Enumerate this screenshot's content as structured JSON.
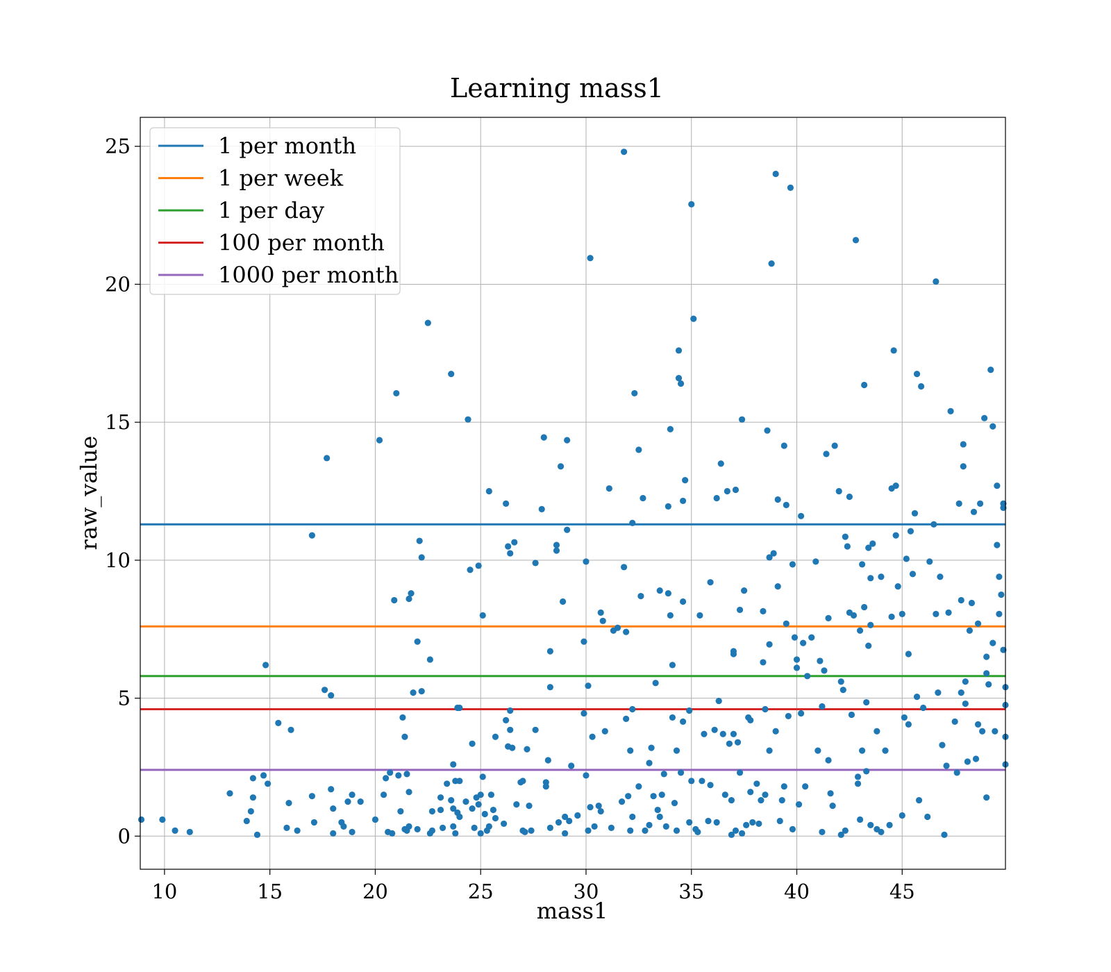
{
  "chart_data": {
    "type": "scatter",
    "title": "Learning mass1",
    "xlabel": "mass1",
    "ylabel": "raw_value",
    "xlim": [
      8.85,
      49.9
    ],
    "ylim": [
      -1.2,
      26.05
    ],
    "xticks": [
      10,
      15,
      20,
      25,
      30,
      35,
      40,
      45
    ],
    "yticks": [
      0,
      5,
      10,
      15,
      20,
      25
    ],
    "grid": true,
    "legend_position": "upper-left",
    "point_color": "#1f77b4",
    "hlines": [
      {
        "name": "1 per month",
        "value": 11.3,
        "color": "#1f77b4"
      },
      {
        "name": "1 per week",
        "value": 7.6,
        "color": "#ff7f0e"
      },
      {
        "name": "1 per day",
        "value": 5.8,
        "color": "#2ca02c"
      },
      {
        "name": "100 per month",
        "value": 4.6,
        "color": "#d62728"
      },
      {
        "name": "1000 per month",
        "value": 2.4,
        "color": "#9467bd"
      }
    ],
    "points": [
      [
        8.9,
        0.6
      ],
      [
        9.9,
        0.6
      ],
      [
        10.5,
        0.2
      ],
      [
        11.2,
        0.15
      ],
      [
        13.1,
        1.55
      ],
      [
        13.9,
        0.55
      ],
      [
        14.1,
        0.9
      ],
      [
        14.2,
        1.4
      ],
      [
        14.2,
        2.1
      ],
      [
        14.4,
        0.05
      ],
      [
        14.7,
        2.2
      ],
      [
        14.8,
        6.2
      ],
      [
        14.9,
        1.9
      ],
      [
        15.4,
        4.1
      ],
      [
        15.8,
        0.3
      ],
      [
        15.9,
        1.2
      ],
      [
        16.0,
        3.85
      ],
      [
        16.3,
        0.2
      ],
      [
        17.0,
        1.45
      ],
      [
        17.0,
        10.9
      ],
      [
        17.1,
        0.5
      ],
      [
        17.6,
        5.3
      ],
      [
        17.7,
        13.7
      ],
      [
        17.9,
        1.7
      ],
      [
        17.9,
        5.1
      ],
      [
        18.0,
        0.1
      ],
      [
        18.0,
        1.0
      ],
      [
        18.4,
        0.5
      ],
      [
        18.5,
        0.35
      ],
      [
        18.7,
        1.25
      ],
      [
        18.9,
        0.15
      ],
      [
        18.9,
        1.5
      ],
      [
        19.3,
        1.25
      ],
      [
        20.0,
        0.6
      ],
      [
        20.2,
        14.35
      ],
      [
        20.4,
        1.5
      ],
      [
        20.5,
        2.1
      ],
      [
        20.6,
        0.15
      ],
      [
        20.7,
        2.3
      ],
      [
        20.8,
        0.1
      ],
      [
        20.9,
        8.55
      ],
      [
        21.0,
        16.05
      ],
      [
        21.1,
        2.2
      ],
      [
        21.2,
        0.9
      ],
      [
        21.3,
        4.3
      ],
      [
        21.4,
        0.25
      ],
      [
        21.4,
        3.6
      ],
      [
        21.5,
        2.25
      ],
      [
        21.5,
        0.2
      ],
      [
        21.6,
        0.35
      ],
      [
        21.6,
        1.6
      ],
      [
        21.6,
        8.6
      ],
      [
        21.7,
        8.8
      ],
      [
        21.8,
        5.2
      ],
      [
        22.0,
        0.25
      ],
      [
        22.0,
        7.05
      ],
      [
        22.1,
        10.7
      ],
      [
        22.2,
        10.1
      ],
      [
        22.2,
        5.25
      ],
      [
        22.5,
        18.6
      ],
      [
        22.6,
        6.4
      ],
      [
        22.6,
        0.1
      ],
      [
        22.7,
        0.2
      ],
      [
        22.7,
        0.9
      ],
      [
        23.1,
        1.4
      ],
      [
        23.1,
        0.95
      ],
      [
        23.2,
        0.3
      ],
      [
        23.4,
        1.9
      ],
      [
        23.6,
        16.75
      ],
      [
        23.6,
        1.3
      ],
      [
        23.7,
        2.6
      ],
      [
        23.7,
        0.35
      ],
      [
        23.7,
        1.0
      ],
      [
        23.8,
        0.1
      ],
      [
        23.8,
        2.0
      ],
      [
        23.9,
        0.85
      ],
      [
        23.9,
        4.65
      ],
      [
        24.0,
        0.7
      ],
      [
        24.0,
        4.65
      ],
      [
        24.0,
        2.0
      ],
      [
        24.3,
        1.25
      ],
      [
        24.4,
        15.1
      ],
      [
        24.5,
        9.65
      ],
      [
        24.6,
        1.0
      ],
      [
        24.6,
        3.35
      ],
      [
        24.7,
        0.3
      ],
      [
        24.8,
        1.4
      ],
      [
        24.9,
        9.8
      ],
      [
        24.9,
        1.15
      ],
      [
        25.0,
        0.1
      ],
      [
        25.0,
        1.5
      ],
      [
        25.1,
        2.15
      ],
      [
        25.1,
        8.0
      ],
      [
        25.2,
        0.8
      ],
      [
        25.3,
        0.2
      ],
      [
        25.4,
        12.5
      ],
      [
        25.4,
        0.35
      ],
      [
        25.5,
        1.5
      ],
      [
        25.6,
        0.95
      ],
      [
        25.7,
        0.65
      ],
      [
        25.7,
        3.6
      ],
      [
        26.1,
        0.45
      ],
      [
        26.2,
        12.05
      ],
      [
        26.2,
        4.2
      ],
      [
        26.3,
        10.5
      ],
      [
        26.3,
        3.25
      ],
      [
        26.4,
        10.25
      ],
      [
        26.4,
        4.55
      ],
      [
        26.4,
        3.85
      ],
      [
        26.5,
        3.2
      ],
      [
        26.6,
        10.65
      ],
      [
        26.7,
        1.15
      ],
      [
        26.9,
        1.95
      ],
      [
        27.0,
        2.0
      ],
      [
        27.0,
        0.2
      ],
      [
        27.1,
        0.15
      ],
      [
        27.2,
        3.15
      ],
      [
        27.3,
        1.1
      ],
      [
        27.4,
        0.2
      ],
      [
        27.6,
        3.85
      ],
      [
        27.6,
        9.9
      ],
      [
        27.9,
        11.85
      ],
      [
        28.0,
        14.45
      ],
      [
        28.1,
        1.95
      ],
      [
        28.1,
        1.8
      ],
      [
        28.2,
        2.75
      ],
      [
        28.3,
        0.3
      ],
      [
        28.3,
        6.7
      ],
      [
        28.3,
        5.4
      ],
      [
        28.6,
        10.55
      ],
      [
        28.6,
        10.35
      ],
      [
        28.7,
        0.5
      ],
      [
        28.8,
        13.4
      ],
      [
        28.9,
        8.5
      ],
      [
        29.0,
        0.1
      ],
      [
        29.0,
        0.7
      ],
      [
        29.1,
        11.1
      ],
      [
        29.1,
        14.35
      ],
      [
        29.2,
        0.55
      ],
      [
        29.3,
        2.55
      ],
      [
        29.6,
        0.75
      ],
      [
        29.9,
        4.45
      ],
      [
        29.9,
        7.05
      ],
      [
        30.0,
        2.2
      ],
      [
        30.0,
        9.95
      ],
      [
        30.1,
        0.2
      ],
      [
        30.1,
        5.45
      ],
      [
        30.2,
        20.95
      ],
      [
        30.2,
        1.05
      ],
      [
        30.3,
        3.6
      ],
      [
        30.4,
        0.35
      ],
      [
        30.6,
        1.1
      ],
      [
        30.7,
        0.9
      ],
      [
        30.7,
        8.1
      ],
      [
        30.8,
        7.8
      ],
      [
        30.9,
        3.8
      ],
      [
        31.1,
        12.6
      ],
      [
        31.2,
        0.3
      ],
      [
        31.3,
        7.45
      ],
      [
        31.5,
        7.55
      ],
      [
        31.7,
        1.25
      ],
      [
        31.8,
        9.75
      ],
      [
        31.8,
        24.8
      ],
      [
        31.9,
        7.4
      ],
      [
        31.9,
        4.25
      ],
      [
        32.0,
        1.45
      ],
      [
        32.1,
        3.1
      ],
      [
        32.1,
        0.2
      ],
      [
        32.2,
        0.7
      ],
      [
        32.2,
        11.35
      ],
      [
        32.2,
        4.6
      ],
      [
        32.3,
        16.05
      ],
      [
        32.5,
        14.0
      ],
      [
        32.5,
        1.8
      ],
      [
        32.6,
        8.7
      ],
      [
        32.7,
        12.25
      ],
      [
        32.8,
        0.2
      ],
      [
        33.0,
        0.4
      ],
      [
        33.0,
        2.65
      ],
      [
        33.1,
        3.2
      ],
      [
        33.2,
        1.45
      ],
      [
        33.3,
        5.55
      ],
      [
        33.4,
        0.95
      ],
      [
        33.5,
        8.9
      ],
      [
        33.5,
        0.7
      ],
      [
        33.6,
        1.5
      ],
      [
        33.7,
        2.25
      ],
      [
        33.8,
        0.35
      ],
      [
        33.9,
        11.95
      ],
      [
        33.9,
        8.8
      ],
      [
        34.0,
        14.75
      ],
      [
        34.0,
        8.0
      ],
      [
        34.1,
        6.2
      ],
      [
        34.1,
        4.3
      ],
      [
        34.2,
        1.2
      ],
      [
        34.3,
        3.1
      ],
      [
        34.3,
        0.2
      ],
      [
        34.4,
        17.6
      ],
      [
        34.4,
        16.6
      ],
      [
        34.5,
        2.3
      ],
      [
        34.5,
        16.4
      ],
      [
        34.6,
        12.15
      ],
      [
        34.6,
        8.5
      ],
      [
        34.6,
        4.15
      ],
      [
        34.7,
        12.9
      ],
      [
        34.9,
        4.55
      ],
      [
        34.9,
        0.5
      ],
      [
        35.0,
        2.0
      ],
      [
        35.0,
        22.9
      ],
      [
        35.1,
        18.75
      ],
      [
        35.2,
        0.25
      ],
      [
        35.3,
        0.15
      ],
      [
        35.4,
        8.0
      ],
      [
        35.5,
        2.0
      ],
      [
        35.6,
        3.7
      ],
      [
        35.8,
        0.55
      ],
      [
        35.9,
        9.2
      ],
      [
        35.9,
        1.85
      ],
      [
        36.1,
        3.85
      ],
      [
        36.2,
        12.25
      ],
      [
        36.2,
        0.5
      ],
      [
        36.3,
        4.9
      ],
      [
        36.4,
        13.5
      ],
      [
        36.5,
        3.7
      ],
      [
        36.6,
        1.5
      ],
      [
        36.7,
        12.5
      ],
      [
        36.8,
        3.35
      ],
      [
        36.9,
        0.05
      ],
      [
        36.9,
        1.3
      ],
      [
        37.0,
        3.7
      ],
      [
        37.0,
        6.6
      ],
      [
        37.0,
        6.7
      ],
      [
        37.1,
        12.55
      ],
      [
        37.1,
        0.2
      ],
      [
        37.2,
        3.4
      ],
      [
        37.3,
        8.2
      ],
      [
        37.3,
        2.3
      ],
      [
        37.4,
        15.1
      ],
      [
        37.4,
        0.1
      ],
      [
        37.5,
        8.9
      ],
      [
        37.6,
        0.4
      ],
      [
        37.7,
        4.3
      ],
      [
        37.8,
        4.2
      ],
      [
        37.8,
        1.6
      ],
      [
        37.9,
        0.5
      ],
      [
        38.1,
        1.9
      ],
      [
        38.2,
        0.45
      ],
      [
        38.3,
        1.3
      ],
      [
        38.4,
        6.3
      ],
      [
        38.4,
        8.15
      ],
      [
        38.5,
        4.6
      ],
      [
        38.5,
        1.5
      ],
      [
        38.6,
        14.7
      ],
      [
        38.7,
        10.1
      ],
      [
        38.7,
        6.95
      ],
      [
        38.7,
        3.1
      ],
      [
        38.8,
        20.75
      ],
      [
        38.9,
        10.25
      ],
      [
        39.0,
        3.8
      ],
      [
        39.0,
        24.0
      ],
      [
        39.1,
        12.2
      ],
      [
        39.1,
        9.05
      ],
      [
        39.2,
        0.55
      ],
      [
        39.3,
        1.3
      ],
      [
        39.4,
        14.15
      ],
      [
        39.4,
        1.8
      ],
      [
        39.5,
        7.7
      ],
      [
        39.5,
        12.0
      ],
      [
        39.6,
        4.35
      ],
      [
        39.7,
        23.5
      ],
      [
        39.8,
        0.25
      ],
      [
        39.8,
        9.85
      ],
      [
        39.9,
        7.2
      ],
      [
        40.0,
        6.4
      ],
      [
        40.0,
        6.1
      ],
      [
        40.1,
        1.15
      ],
      [
        40.2,
        4.45
      ],
      [
        40.2,
        11.6
      ],
      [
        40.3,
        7.0
      ],
      [
        40.4,
        1.8
      ],
      [
        40.5,
        5.8
      ],
      [
        40.7,
        7.2
      ],
      [
        40.9,
        9.95
      ],
      [
        41.0,
        3.1
      ],
      [
        41.1,
        6.35
      ],
      [
        41.2,
        4.7
      ],
      [
        41.2,
        0.15
      ],
      [
        41.3,
        6.0
      ],
      [
        41.4,
        13.85
      ],
      [
        41.5,
        2.75
      ],
      [
        41.5,
        7.9
      ],
      [
        41.6,
        1.55
      ],
      [
        41.7,
        1.1
      ],
      [
        41.8,
        14.15
      ],
      [
        42.0,
        12.5
      ],
      [
        42.1,
        5.6
      ],
      [
        42.1,
        0.05
      ],
      [
        42.2,
        5.3
      ],
      [
        42.3,
        10.85
      ],
      [
        42.3,
        0.2
      ],
      [
        42.4,
        10.5
      ],
      [
        42.5,
        12.3
      ],
      [
        42.5,
        8.1
      ],
      [
        42.6,
        4.4
      ],
      [
        42.7,
        8.0
      ],
      [
        42.8,
        21.6
      ],
      [
        42.9,
        2.15
      ],
      [
        42.9,
        1.9
      ],
      [
        43.0,
        7.45
      ],
      [
        43.0,
        0.6
      ],
      [
        43.1,
        9.85
      ],
      [
        43.1,
        3.1
      ],
      [
        43.2,
        8.3
      ],
      [
        43.2,
        16.35
      ],
      [
        43.3,
        4.85
      ],
      [
        43.3,
        2.35
      ],
      [
        43.4,
        10.45
      ],
      [
        43.4,
        6.9
      ],
      [
        43.5,
        0.4
      ],
      [
        43.5,
        9.35
      ],
      [
        43.5,
        7.65
      ],
      [
        43.6,
        10.6
      ],
      [
        43.8,
        0.25
      ],
      [
        43.8,
        3.8
      ],
      [
        44.0,
        9.4
      ],
      [
        44.0,
        0.15
      ],
      [
        44.2,
        3.1
      ],
      [
        44.4,
        0.4
      ],
      [
        44.5,
        12.6
      ],
      [
        44.5,
        7.95
      ],
      [
        44.6,
        17.6
      ],
      [
        44.7,
        12.7
      ],
      [
        44.7,
        10.9
      ],
      [
        44.8,
        9.05
      ],
      [
        45.0,
        0.75
      ],
      [
        45.0,
        8.05
      ],
      [
        45.1,
        4.3
      ],
      [
        45.2,
        10.05
      ],
      [
        45.3,
        6.6
      ],
      [
        45.3,
        4.05
      ],
      [
        45.4,
        11.05
      ],
      [
        45.5,
        9.5
      ],
      [
        45.6,
        11.7
      ],
      [
        45.7,
        16.75
      ],
      [
        45.7,
        5.05
      ],
      [
        45.8,
        1.3
      ],
      [
        45.9,
        16.3
      ],
      [
        46.0,
        4.65
      ],
      [
        46.2,
        0.7
      ],
      [
        46.3,
        9.95
      ],
      [
        46.5,
        11.3
      ],
      [
        46.6,
        20.1
      ],
      [
        46.6,
        8.05
      ],
      [
        46.7,
        5.2
      ],
      [
        46.8,
        9.4
      ],
      [
        46.9,
        3.3
      ],
      [
        47.0,
        0.05
      ],
      [
        47.1,
        2.55
      ],
      [
        47.2,
        8.1
      ],
      [
        47.3,
        15.4
      ],
      [
        47.5,
        4.15
      ],
      [
        47.6,
        2.3
      ],
      [
        47.7,
        12.05
      ],
      [
        47.8,
        8.55
      ],
      [
        47.8,
        5.2
      ],
      [
        47.9,
        14.2
      ],
      [
        47.9,
        13.4
      ],
      [
        48.0,
        5.6
      ],
      [
        48.0,
        4.8
      ],
      [
        48.1,
        2.7
      ],
      [
        48.2,
        7.45
      ],
      [
        48.3,
        8.45
      ],
      [
        48.4,
        11.75
      ],
      [
        48.5,
        2.8
      ],
      [
        48.6,
        7.7
      ],
      [
        48.6,
        4.05
      ],
      [
        48.7,
        12.05
      ],
      [
        48.8,
        3.8
      ],
      [
        48.9,
        15.15
      ],
      [
        49.0,
        6.5
      ],
      [
        49.0,
        5.9
      ],
      [
        49.0,
        1.4
      ],
      [
        49.1,
        5.5
      ],
      [
        49.2,
        16.9
      ],
      [
        49.3,
        7.0
      ],
      [
        49.3,
        14.85
      ],
      [
        49.4,
        3.8
      ],
      [
        49.5,
        12.7
      ],
      [
        49.5,
        10.55
      ],
      [
        49.6,
        9.4
      ],
      [
        49.6,
        8.05
      ],
      [
        49.7,
        8.75
      ],
      [
        49.8,
        11.9
      ],
      [
        49.8,
        12.05
      ],
      [
        49.8,
        6.75
      ],
      [
        49.9,
        5.4
      ],
      [
        49.9,
        4.75
      ],
      [
        49.9,
        3.6
      ],
      [
        49.9,
        2.6
      ]
    ]
  }
}
